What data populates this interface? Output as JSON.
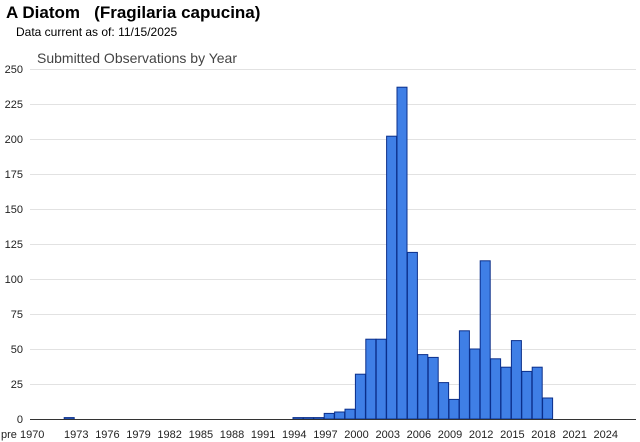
{
  "header": {
    "title": "A Diatom   (Fragilaria capucina)",
    "date_label": "Data current as of:",
    "date_value": "11/15/2025"
  },
  "chart_data": {
    "type": "bar",
    "title": "Submitted Observations by Year",
    "xlabel": "",
    "ylabel": "",
    "ylim": [
      0,
      250
    ],
    "y_ticks": [
      0,
      25,
      50,
      75,
      100,
      125,
      150,
      175,
      200,
      225,
      250
    ],
    "x_tick_labels": [
      "pre 1970",
      "1973",
      "1976",
      "1979",
      "1982",
      "1985",
      "1988",
      "1991",
      "1994",
      "1997",
      "2000",
      "2003",
      "2006",
      "2009",
      "2012",
      "2015",
      "2018",
      "2021",
      "2024"
    ],
    "grid": true,
    "bar_color": "#3f7fe6",
    "categories": [
      "pre 1970",
      "1970",
      "1971",
      "1972",
      "1973",
      "1974",
      "1975",
      "1976",
      "1977",
      "1978",
      "1979",
      "1980",
      "1981",
      "1982",
      "1983",
      "1984",
      "1985",
      "1986",
      "1987",
      "1988",
      "1989",
      "1990",
      "1991",
      "1992",
      "1993",
      "1994",
      "1995",
      "1996",
      "1997",
      "1998",
      "1999",
      "2000",
      "2001",
      "2002",
      "2003",
      "2004",
      "2005",
      "2006",
      "2007",
      "2008",
      "2009",
      "2010",
      "2011",
      "2012",
      "2013",
      "2014",
      "2015",
      "2016",
      "2017",
      "2018",
      "2019",
      "2020",
      "2021",
      "2022",
      "2023",
      "2024",
      "2025"
    ],
    "values": [
      0,
      0,
      0,
      1,
      0,
      0,
      0,
      0,
      0,
      0,
      0,
      0,
      0,
      0,
      0,
      0,
      0,
      0,
      0,
      0,
      0,
      0,
      0,
      0,
      0,
      1,
      1,
      1,
      4,
      5,
      7,
      32,
      57,
      57,
      202,
      237,
      119,
      46,
      44,
      26,
      14,
      63,
      50,
      113,
      43,
      37,
      56,
      34,
      37,
      15,
      0,
      0,
      0,
      0,
      0,
      0,
      0
    ]
  }
}
